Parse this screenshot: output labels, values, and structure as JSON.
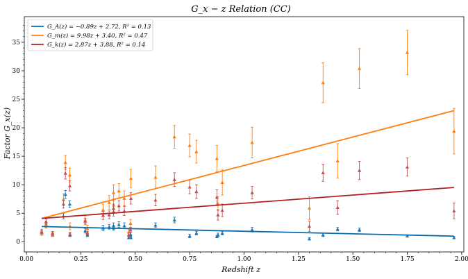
{
  "chart_data": {
    "type": "scatter",
    "title": "G_x − z Relation (CC)",
    "xlabel": "Redshift   z",
    "ylabel": "Factor   G_x(z)",
    "xlim": [
      -0.01,
      2.01
    ],
    "ylim": [
      -1.8,
      39.5
    ],
    "xticks": [
      "0.00",
      "0.25",
      "0.50",
      "0.75",
      "1.00",
      "1.25",
      "1.50",
      "1.75",
      "2.00"
    ],
    "xtick_values": [
      0.0,
      0.25,
      0.5,
      0.75,
      1.0,
      1.25,
      1.5,
      1.75,
      2.0
    ],
    "yticks": [
      "0",
      "5",
      "10",
      "15",
      "20",
      "25",
      "30",
      "35"
    ],
    "ytick_values": [
      0,
      5,
      10,
      15,
      20,
      25,
      30,
      35
    ],
    "legend_position": "top-left",
    "fit_range": [
      0.07,
      1.965
    ],
    "series": [
      {
        "name": "G_A",
        "legend": "G_A(z) = −0.89z + 2.72, R² = 0.13",
        "slope": -0.89,
        "intercept": 2.72,
        "color": "#1f77b4",
        "line_color": "#0a6bb0",
        "points": [
          [
            0.07,
            1.6,
            0.3
          ],
          [
            0.09,
            2.8,
            0.4
          ],
          [
            0.12,
            1.2,
            0.2
          ],
          [
            0.17,
            4.5,
            0.5
          ],
          [
            0.179,
            8.3,
            0.7
          ],
          [
            0.199,
            6.6,
            0.6
          ],
          [
            0.2,
            1.2,
            0.3
          ],
          [
            0.27,
            1.9,
            0.4
          ],
          [
            0.28,
            1.2,
            0.3
          ],
          [
            0.352,
            2.4,
            0.5
          ],
          [
            0.38,
            2.6,
            0.4
          ],
          [
            0.4,
            2.8,
            0.5
          ],
          [
            0.4004,
            2.4,
            0.4
          ],
          [
            0.4247,
            3.0,
            0.5
          ],
          [
            0.4497,
            2.8,
            0.5
          ],
          [
            0.47,
            0.7,
            0.2
          ],
          [
            0.4783,
            1.3,
            0.3
          ],
          [
            0.48,
            0.7,
            0.2
          ],
          [
            0.593,
            2.9,
            0.4
          ],
          [
            0.68,
            3.8,
            0.5
          ],
          [
            0.75,
            1.0,
            0.3
          ],
          [
            0.781,
            1.5,
            0.3
          ],
          [
            0.875,
            0.9,
            0.2
          ],
          [
            0.88,
            1.2,
            0.3
          ],
          [
            0.9,
            1.5,
            0.3
          ],
          [
            1.037,
            2.1,
            0.4
          ],
          [
            1.3,
            0.5,
            0.2
          ],
          [
            1.363,
            1.2,
            0.3
          ],
          [
            1.43,
            2.2,
            0.3
          ],
          [
            1.53,
            2.1,
            0.3
          ],
          [
            1.75,
            1.0,
            0.2
          ],
          [
            1.965,
            0.7,
            0.2
          ]
        ]
      },
      {
        "name": "G_m",
        "legend": "G_m(z) = 9.98z + 3.40, R² = 0.47",
        "slope": 9.98,
        "intercept": 3.4,
        "color": "#ff7f0e",
        "line_color": "#ff7f0e",
        "points": [
          [
            0.07,
            1.5,
            0.4
          ],
          [
            0.09,
            3.0,
            0.6
          ],
          [
            0.12,
            1.3,
            0.4
          ],
          [
            0.17,
            7.4,
            1.0
          ],
          [
            0.179,
            13.9,
            1.2
          ],
          [
            0.199,
            11.7,
            1.2
          ],
          [
            0.2,
            2.7,
            0.6
          ],
          [
            0.27,
            3.8,
            0.8
          ],
          [
            0.28,
            2.3,
            0.6
          ],
          [
            0.352,
            5.6,
            1.0
          ],
          [
            0.38,
            6.9,
            1.2
          ],
          [
            0.4,
            8.6,
            1.4
          ],
          [
            0.4004,
            6.4,
            1.1
          ],
          [
            0.4247,
            8.9,
            1.3
          ],
          [
            0.4497,
            7.6,
            1.3
          ],
          [
            0.47,
            1.7,
            0.5
          ],
          [
            0.4783,
            3.2,
            0.7
          ],
          [
            0.48,
            11.1,
            1.6
          ],
          [
            0.593,
            11.3,
            2.0
          ],
          [
            0.68,
            18.4,
            2.0
          ],
          [
            0.75,
            16.9,
            2.0
          ],
          [
            0.781,
            15.8,
            2.0
          ],
          [
            0.875,
            14.6,
            2.3
          ],
          [
            0.88,
            6.7,
            1.2
          ],
          [
            0.9,
            10.4,
            2.2
          ],
          [
            1.037,
            17.4,
            2.7
          ],
          [
            1.3,
            5.9,
            2.0
          ],
          [
            1.363,
            27.9,
            3.5
          ],
          [
            1.43,
            14.2,
            3.0
          ],
          [
            1.53,
            30.4,
            3.5
          ],
          [
            1.75,
            33.2,
            3.9
          ],
          [
            1.965,
            19.4,
            4.0
          ]
        ]
      },
      {
        "name": "G_k",
        "legend": "G_k(z) = 2.87z + 3.88, R² = 0.14",
        "slope": 2.87,
        "intercept": 3.88,
        "color": "#c44e52",
        "line_color": "#b22222",
        "points": [
          [
            0.07,
            1.8,
            0.4
          ],
          [
            0.09,
            3.5,
            0.5
          ],
          [
            0.12,
            1.5,
            0.3
          ],
          [
            0.17,
            6.6,
            0.7
          ],
          [
            0.179,
            12.0,
            1.0
          ],
          [
            0.199,
            9.8,
            0.9
          ],
          [
            0.2,
            1.3,
            0.3
          ],
          [
            0.27,
            3.6,
            0.5
          ],
          [
            0.28,
            1.5,
            0.3
          ],
          [
            0.352,
            4.6,
            0.7
          ],
          [
            0.38,
            4.7,
            0.7
          ],
          [
            0.4,
            5.8,
            0.8
          ],
          [
            0.4004,
            5.2,
            0.7
          ],
          [
            0.4247,
            6.3,
            0.9
          ],
          [
            0.4497,
            5.4,
            0.8
          ],
          [
            0.47,
            1.2,
            0.3
          ],
          [
            0.4783,
            2.1,
            0.4
          ],
          [
            0.48,
            7.6,
            1.0
          ],
          [
            0.593,
            7.3,
            1.0
          ],
          [
            0.68,
            10.9,
            1.2
          ],
          [
            0.75,
            9.6,
            1.2
          ],
          [
            0.781,
            8.8,
            1.2
          ],
          [
            0.875,
            7.8,
            1.3
          ],
          [
            0.88,
            4.7,
            0.9
          ],
          [
            0.9,
            5.5,
            1.1
          ],
          [
            1.037,
            8.6,
            1.1
          ],
          [
            1.3,
            2.7,
            0.9
          ],
          [
            1.363,
            12.1,
            1.5
          ],
          [
            1.43,
            6.0,
            1.2
          ],
          [
            1.53,
            12.5,
            1.6
          ],
          [
            1.75,
            13.1,
            1.6
          ],
          [
            1.965,
            5.4,
            1.4
          ]
        ]
      }
    ]
  }
}
